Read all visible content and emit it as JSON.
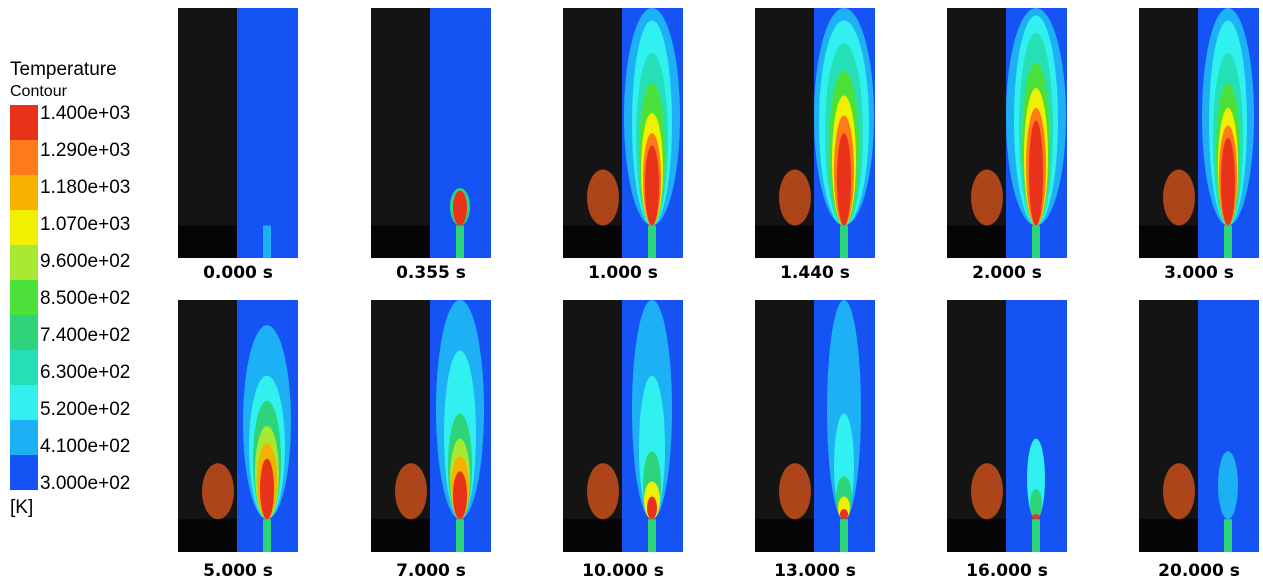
{
  "legend": {
    "title": "Temperature",
    "subtitle": "Contour",
    "labels": [
      "1.400e+03",
      "1.290e+03",
      "1.180e+03",
      "1.070e+03",
      "9.600e+02",
      "8.500e+02",
      "7.400e+02",
      "6.300e+02",
      "5.200e+02",
      "4.100e+02",
      "3.000e+02"
    ],
    "unit": "[K]"
  },
  "panels": [
    {
      "label": "0.000 s"
    },
    {
      "label": "0.355 s"
    },
    {
      "label": "1.000 s"
    },
    {
      "label": "1.440 s"
    },
    {
      "label": "2.000 s"
    },
    {
      "label": "3.000 s"
    },
    {
      "label": "5.000 s"
    },
    {
      "label": "7.000 s"
    },
    {
      "label": "10.000 s"
    },
    {
      "label": "13.000 s"
    },
    {
      "label": "16.000 s"
    },
    {
      "label": "20.000 s"
    }
  ]
}
